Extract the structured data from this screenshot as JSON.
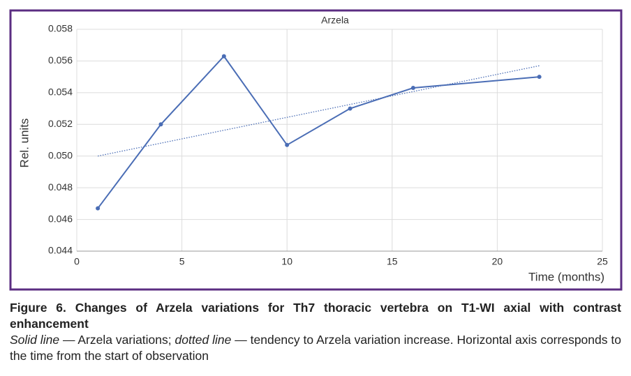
{
  "chart_data": {
    "type": "line",
    "title": "Arzela",
    "ylabel": "Rel. units",
    "xlabel": "Time (months)",
    "x": [
      1,
      4,
      7,
      10,
      13,
      16,
      22
    ],
    "series": [
      {
        "name": "Arzela",
        "color": "#4a6db5",
        "values": [
          0.0467,
          0.052,
          0.0563,
          0.0507,
          0.053,
          0.0543,
          0.055
        ]
      }
    ],
    "trendline": {
      "x": [
        1,
        22
      ],
      "values": [
        0.05,
        0.0557
      ],
      "color": "#4a6db5",
      "style": "dotted"
    },
    "xlim": [
      0,
      25
    ],
    "xticks": [
      0,
      5,
      10,
      15,
      20,
      25
    ],
    "ylim": [
      0.044,
      0.058
    ],
    "yticks": [
      0.044,
      0.046,
      0.048,
      {
        "value": 0.05,
        "label": "0.050"
      },
      0.052,
      0.054,
      0.056,
      0.058
    ],
    "grid": true
  },
  "caption": {
    "title": "Figure 6. Changes of Arzela variations for Th7 thoracic vertebra on T1-WI axial with contrast enhancement",
    "description": [
      {
        "text": "Solid line",
        "italic": true
      },
      {
        "text": " — Arzela variations; ",
        "italic": false
      },
      {
        "text": "dotted line",
        "italic": true
      },
      {
        "text": " — tendency to Arzela variation increase. Horizontal axis corresponds to the time from the start of observation",
        "italic": false
      }
    ]
  }
}
